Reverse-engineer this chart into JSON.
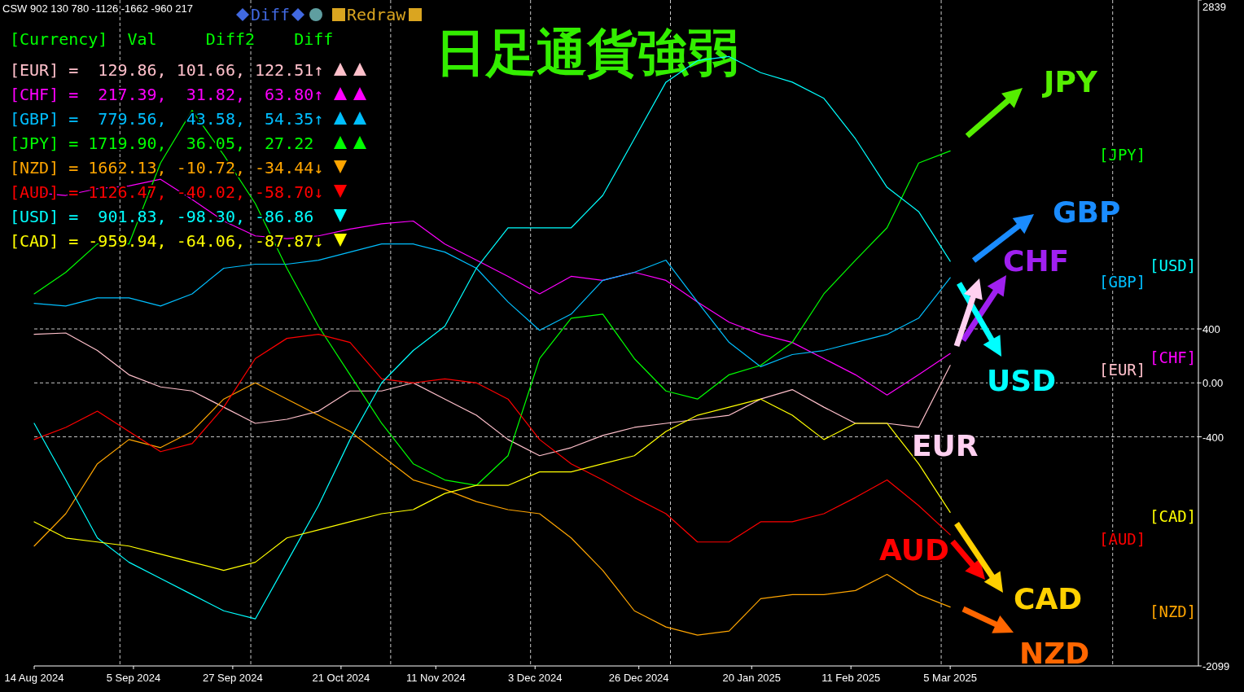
{
  "chart_data": {
    "type": "line",
    "title": "日足通貨強弱",
    "x": [
      "2024-08-14",
      "2024-08-21",
      "2024-08-28",
      "2024-09-04",
      "2024-09-11",
      "2024-09-18",
      "2024-09-25",
      "2024-10-02",
      "2024-10-09",
      "2024-10-16",
      "2024-10-23",
      "2024-10-30",
      "2024-11-06",
      "2024-11-13",
      "2024-11-20",
      "2024-11-27",
      "2024-12-04",
      "2024-12-11",
      "2024-12-18",
      "2024-12-25",
      "2025-01-01",
      "2025-01-08",
      "2025-01-15",
      "2025-01-22",
      "2025-01-29",
      "2025-02-05",
      "2025-02-12",
      "2025-02-19",
      "2025-02-26",
      "2025-03-05"
    ],
    "xlim": [
      "2024-08-14",
      "2025-04-29"
    ],
    "xticks": [
      {
        "value": "2024-08-14",
        "label": "14 Aug 2024"
      },
      {
        "value": "2024-09-05",
        "label": "5 Sep 2024"
      },
      {
        "value": "2024-09-27",
        "label": "27 Sep 2024"
      },
      {
        "value": "2024-10-21",
        "label": "21 Oct 2024"
      },
      {
        "value": "2024-11-11",
        "label": "11 Nov 2024"
      },
      {
        "value": "2024-12-03",
        "label": "3 Dec 2024"
      },
      {
        "value": "2024-12-26",
        "label": "26 Dec 2024"
      },
      {
        "value": "2025-01-20",
        "label": "20 Jan 2025"
      },
      {
        "value": "2025-02-11",
        "label": "11 Feb 2025"
      },
      {
        "value": "2025-03-05",
        "label": "5 Mar 2025"
      }
    ],
    "ylim": [
      -2099,
      2839
    ],
    "yticks": [
      -2099,
      -400,
      {
        "value": 0,
        "label": "0.00"
      },
      400,
      2839
    ],
    "series": [
      {
        "name": "[EUR]",
        "color": "#ffc0cb",
        "values": [
          360,
          370,
          240,
          60,
          -30,
          -60,
          -180,
          -300,
          -270,
          -210,
          -60,
          -60,
          0,
          -120,
          -240,
          -420,
          -540,
          -480,
          -390,
          -330,
          -300,
          -270,
          -240,
          -120,
          -50,
          -180,
          -300,
          -300,
          -330,
          130
        ]
      },
      {
        "name": "[CHF]",
        "color": "#ff00ff",
        "values": [
          1410,
          1390,
          1440,
          1460,
          1510,
          1360,
          1200,
          1090,
          1070,
          1090,
          1140,
          1180,
          1200,
          1030,
          910,
          790,
          660,
          790,
          760,
          820,
          760,
          600,
          450,
          360,
          300,
          180,
          60,
          -90,
          60,
          217
        ]
      },
      {
        "name": "[GBP]",
        "color": "#00bfff",
        "values": [
          590,
          570,
          630,
          630,
          570,
          660,
          850,
          880,
          880,
          910,
          970,
          1030,
          1030,
          970,
          850,
          600,
          390,
          510,
          760,
          820,
          910,
          600,
          300,
          120,
          210,
          240,
          300,
          360,
          480,
          780
        ]
      },
      {
        "name": "[JPY]",
        "color": "#00ff00",
        "values": [
          660,
          820,
          1030,
          1030,
          1630,
          2020,
          1690,
          1330,
          850,
          420,
          60,
          -300,
          -600,
          -720,
          -760,
          -540,
          180,
          480,
          510,
          180,
          -60,
          -120,
          60,
          130,
          300,
          660,
          910,
          1150,
          1630,
          1720
        ]
      },
      {
        "name": "[NZD]",
        "color": "#ffa500",
        "values": [
          -1210,
          -970,
          -600,
          -420,
          -480,
          -360,
          -120,
          0,
          -120,
          -240,
          -360,
          -540,
          -720,
          -790,
          -880,
          -940,
          -970,
          -1150,
          -1390,
          -1690,
          -1810,
          -1870,
          -1840,
          -1600,
          -1570,
          -1570,
          -1540,
          -1420,
          -1570,
          -1662
        ]
      },
      {
        "name": "[AUD]",
        "color": "#ff0000",
        "values": [
          -420,
          -330,
          -210,
          -360,
          -510,
          -450,
          -180,
          180,
          330,
          360,
          300,
          30,
          0,
          30,
          0,
          -120,
          -420,
          -600,
          -720,
          -850,
          -970,
          -1180,
          -1180,
          -1030,
          -1030,
          -970,
          -850,
          -720,
          -910,
          -1126
        ]
      },
      {
        "name": "[USD]",
        "color": "#00ffff",
        "values": [
          -300,
          -720,
          -1150,
          -1330,
          -1450,
          -1570,
          -1690,
          -1750,
          -1330,
          -910,
          -420,
          0,
          240,
          420,
          850,
          1150,
          1150,
          1150,
          1390,
          1810,
          2230,
          2390,
          2420,
          2300,
          2230,
          2110,
          1810,
          1450,
          1270,
          902
        ]
      },
      {
        "name": "[CAD]",
        "color": "#ffff00",
        "values": [
          -1030,
          -1150,
          -1180,
          -1210,
          -1270,
          -1330,
          -1390,
          -1330,
          -1150,
          -1090,
          -1030,
          -970,
          -940,
          -820,
          -760,
          -760,
          -660,
          -660,
          -600,
          -540,
          -360,
          -240,
          -180,
          -120,
          -240,
          -420,
          -300,
          -300,
          -600,
          -960
        ]
      }
    ],
    "ref_lines": [
      {
        "axis": "y",
        "value": 400,
        "color": "#c8c8c8",
        "line_style": "dashed"
      },
      {
        "axis": "y",
        "value": 0,
        "color": "#c8c8c8",
        "line_style": "dashed"
      },
      {
        "axis": "y",
        "value": -400,
        "color": "#c8c8c8",
        "line_style": "dashed"
      },
      {
        "axis": "x",
        "value": "2024-09-02",
        "color": "#c8c8c8",
        "line_style": "dashed"
      },
      {
        "axis": "x",
        "value": "2024-10-01",
        "color": "#c8c8c8",
        "line_style": "dashed"
      },
      {
        "axis": "x",
        "value": "2024-11-01",
        "color": "#c8c8c8",
        "line_style": "dashed"
      },
      {
        "axis": "x",
        "value": "2024-12-02",
        "color": "#c8c8c8",
        "line_style": "dashed"
      },
      {
        "axis": "x",
        "value": "2025-01-02",
        "color": "#c8c8c8",
        "line_style": "dashed"
      },
      {
        "axis": "x",
        "value": "2025-03-03",
        "color": "#c8c8c8",
        "line_style": "dashed"
      },
      {
        "axis": "x",
        "value": "2025-04-10",
        "color": "#c8c8c8",
        "line_style": "dashed"
      }
    ],
    "annotations": [
      "CSW 902 130 780 -1126 -1662 -960 217",
      "[Currency]  Val     Diff2    Diff",
      "[EUR] =  129.86, 101.66, 122.51↑",
      "[CHF] =  217.39,  31.82,  63.80↑",
      "[GBP] =  779.56,  43.58,  54.35↑",
      "[JPY] = 1719.90,  36.05,  27.22",
      "[NZD] = 1662.13, -10.72, -34.44↓",
      "[AUD] = 1126.47, -40.02, -58.70↓",
      "[USD] =  901.83, -98.30, -86.86",
      "[CAD] = -959.94, -64.06, -87.87↓",
      "Diff",
      "Redraw",
      "JPY",
      "GBP",
      "CHF",
      "USD",
      "EUR",
      "AUD",
      "CAD",
      "NZD"
    ]
  }
}
